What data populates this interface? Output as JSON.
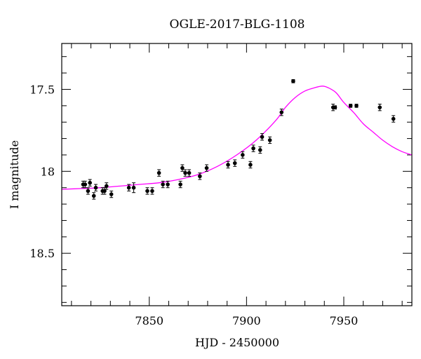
{
  "chart_data": {
    "type": "scatter",
    "title": "OGLE-2017-BLG-1108",
    "xlabel": "HJD - 2450000",
    "ylabel": "I magnitude",
    "xlim": [
      7805,
      7985
    ],
    "ylim": [
      18.82,
      17.22
    ],
    "y_inverted": true,
    "grid": false,
    "x_major_ticks": [
      7850,
      7900,
      7950
    ],
    "y_major_ticks": [
      17.5,
      18,
      18.5
    ],
    "x_tick_labels": [
      "7850",
      "7900",
      "7950"
    ],
    "y_tick_labels": [
      "17.5",
      "18",
      "18.5"
    ],
    "series": [
      {
        "kind": "points",
        "color": "#000000",
        "x": [
          7816.0,
          7817.0,
          7818.5,
          7819.5,
          7821.5,
          7822.5,
          7826.0,
          7827.0,
          7828.0,
          7830.5,
          7839.5,
          7842.0,
          7849.0,
          7851.5,
          7855.0,
          7857.0,
          7859.5,
          7866.0,
          7867.0,
          7868.5,
          7870.5,
          7876.0,
          7879.5,
          7890.5,
          7894.0,
          7898.0,
          7902.0,
          7903.5,
          7907.0,
          7908.0,
          7912.0,
          7918.0,
          7924.0,
          7944.5,
          7945.5,
          7953.5,
          7956.5,
          7968.5,
          7975.5
        ],
        "y": [
          18.08,
          18.08,
          18.12,
          18.07,
          18.15,
          18.1,
          18.12,
          18.12,
          18.09,
          18.14,
          18.1,
          18.1,
          18.12,
          18.12,
          18.01,
          18.08,
          18.08,
          18.08,
          17.98,
          18.01,
          18.01,
          18.03,
          17.98,
          17.96,
          17.95,
          17.9,
          17.96,
          17.86,
          17.87,
          17.79,
          17.81,
          17.64,
          17.45,
          17.61,
          17.61,
          17.6,
          17.6,
          17.61,
          17.68
        ],
        "yerr": [
          0.02,
          0.02,
          0.02,
          0.02,
          0.02,
          0.02,
          0.02,
          0.02,
          0.02,
          0.02,
          0.02,
          0.03,
          0.02,
          0.02,
          0.02,
          0.02,
          0.02,
          0.02,
          0.02,
          0.02,
          0.02,
          0.02,
          0.02,
          0.02,
          0.02,
          0.02,
          0.02,
          0.02,
          0.02,
          0.02,
          0.02,
          0.02,
          0.01,
          0.02,
          0.01,
          0.01,
          0.01,
          0.02,
          0.02
        ]
      },
      {
        "kind": "model",
        "color": "#ff00ff",
        "x": [
          7805,
          7815,
          7825,
          7835,
          7845,
          7855,
          7865,
          7875,
          7885,
          7895,
          7905,
          7915,
          7920,
          7925,
          7930,
          7935,
          7939,
          7942,
          7946,
          7950,
          7955,
          7960,
          7965,
          7970,
          7975,
          7980,
          7985
        ],
        "y": [
          18.11,
          18.105,
          18.1,
          18.09,
          18.08,
          18.07,
          18.05,
          18.02,
          17.97,
          17.9,
          17.81,
          17.69,
          17.61,
          17.55,
          17.51,
          17.49,
          17.48,
          17.49,
          17.52,
          17.58,
          17.64,
          17.71,
          17.76,
          17.81,
          17.85,
          17.88,
          17.9
        ]
      }
    ]
  }
}
